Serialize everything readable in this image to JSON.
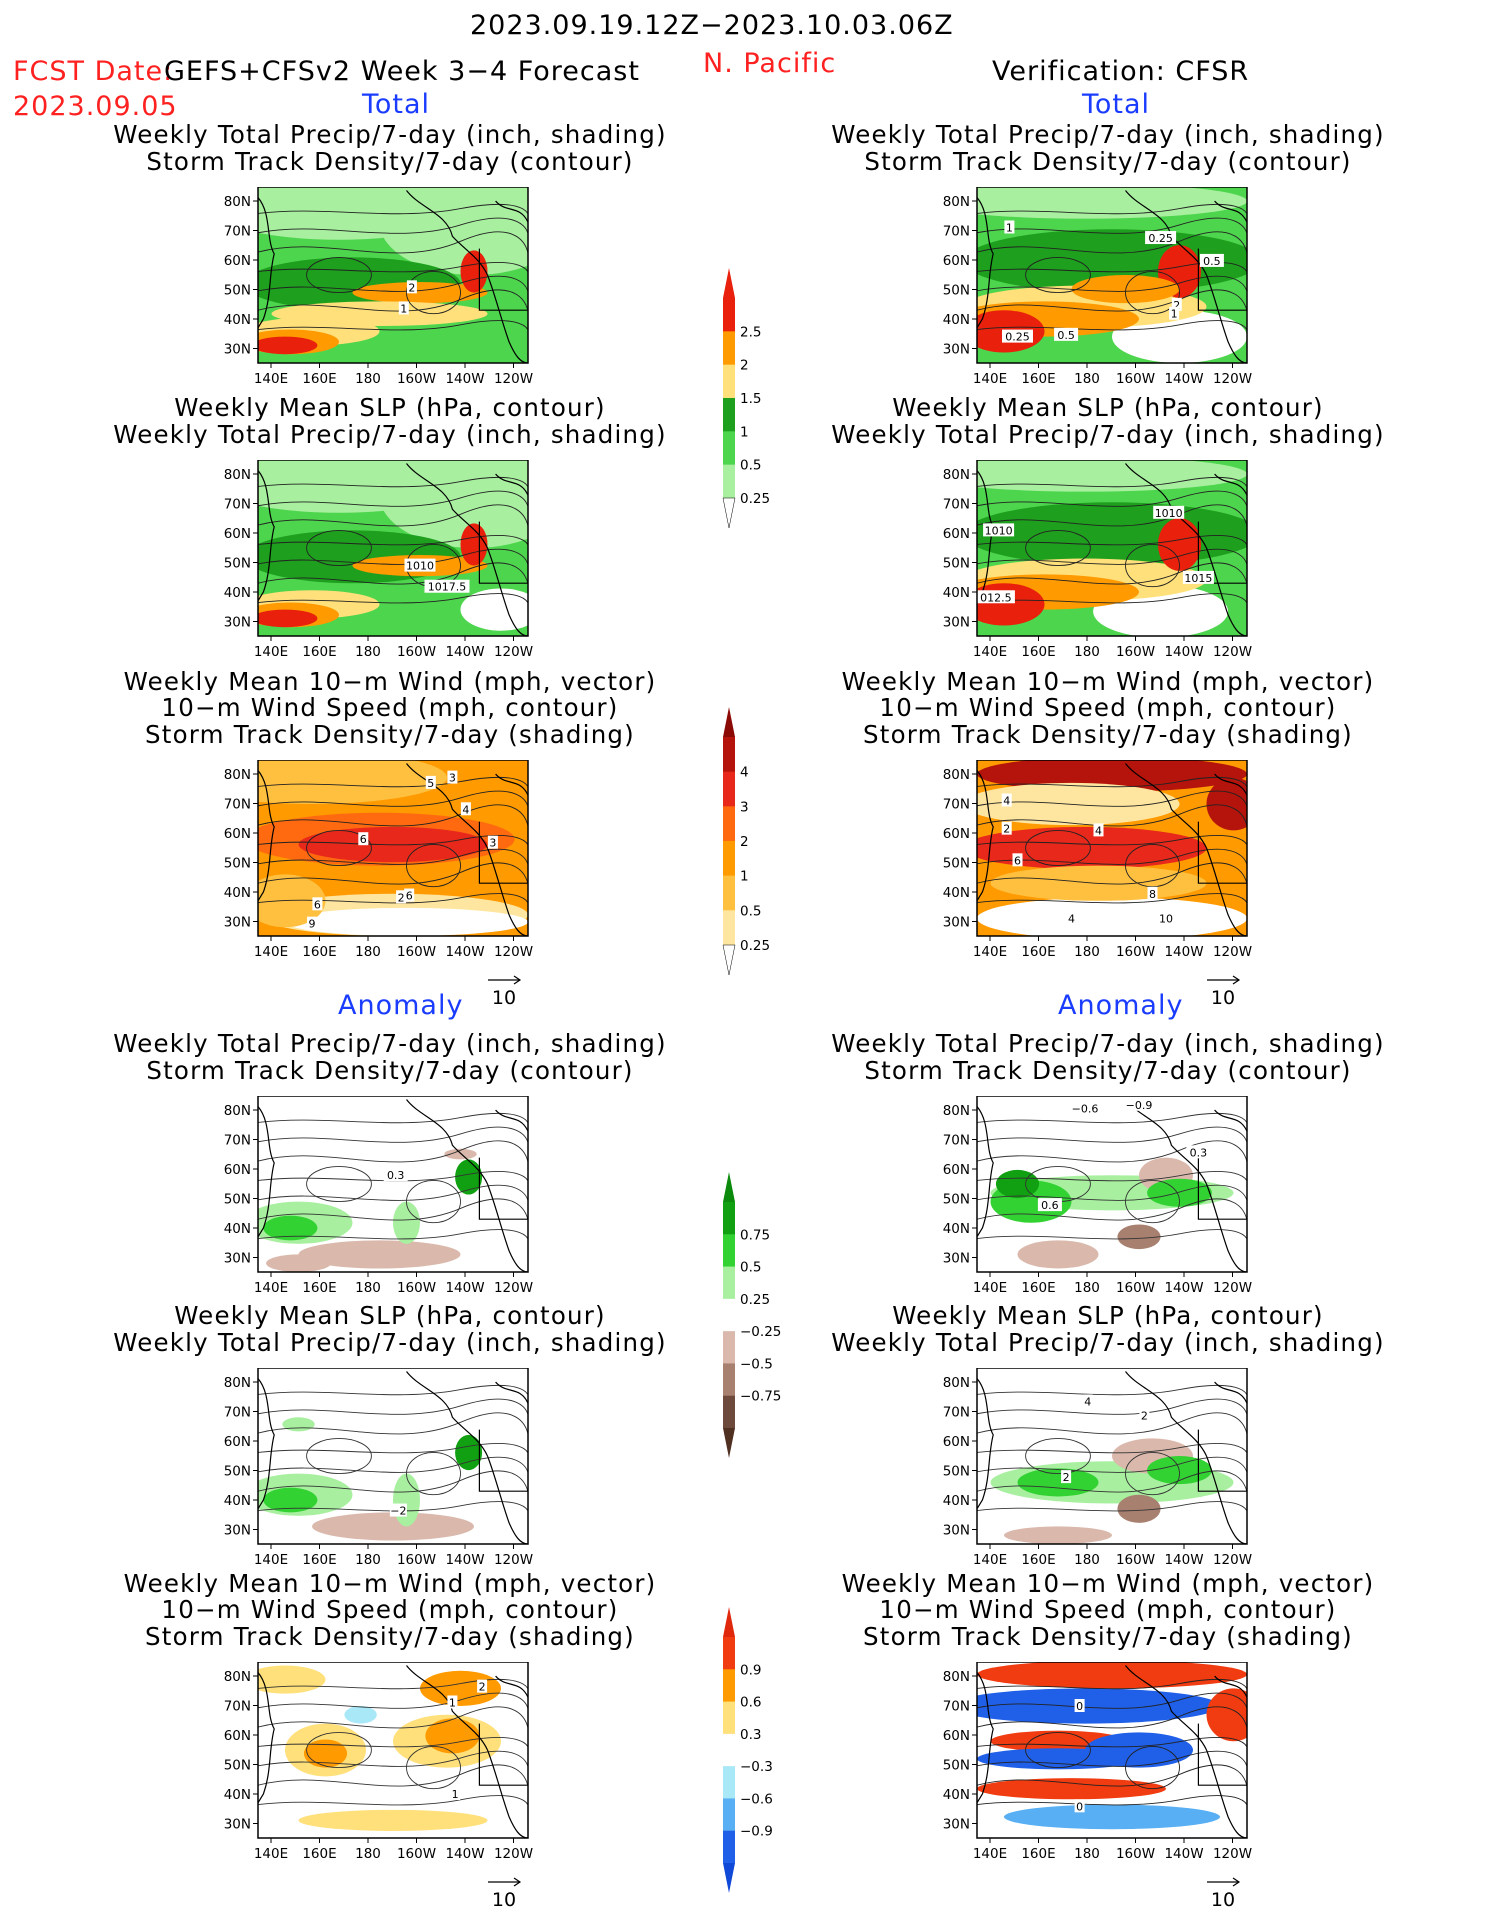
{
  "header": {
    "date_range": "2023.09.19.12Z−2023.10.03.06Z",
    "fcst_date_label": "FCST Date:",
    "fcst_date": "2023.09.05",
    "model": "GEFS+CFSv2 Week 3−4 Forecast",
    "region": "N. Pacific",
    "verification": "Verification: CFSR"
  },
  "sections": {
    "total": "Total",
    "anomaly": "Anomaly"
  },
  "axes": {
    "lat_ticks": [
      "80N",
      "70N",
      "60N",
      "50N",
      "40N",
      "30N"
    ],
    "lon_ticks": [
      "140E",
      "160E",
      "180",
      "160W",
      "140W",
      "120W"
    ]
  },
  "vector_ref": "10",
  "panels": [
    {
      "id": "fc-total-precip",
      "title": [
        "Weekly Total Precip/7-day (inch, shading)",
        "Storm Track Density/7-day (contour)"
      ],
      "labels": [
        "2",
        "1"
      ]
    },
    {
      "id": "vf-total-precip",
      "title": [
        "Weekly Total Precip/7-day (inch, shading)",
        "Storm Track Density/7-day (contour)"
      ],
      "labels": [
        "1",
        "0.25",
        "0.5",
        "2",
        "0.25",
        "0.5",
        "1"
      ]
    },
    {
      "id": "fc-total-slp",
      "title": [
        "Weekly Mean SLP (hPa, contour)",
        "Weekly Total Precip/7-day (inch, shading)"
      ],
      "labels": [
        "1010",
        "1017.5"
      ]
    },
    {
      "id": "vf-total-slp",
      "title": [
        "Weekly Mean SLP (hPa, contour)",
        "Weekly Total Precip/7-day (inch, shading)"
      ],
      "labels": [
        "1010",
        "1010",
        "1015",
        "012.5"
      ]
    },
    {
      "id": "fc-total-wind",
      "title": [
        "Weekly Mean 10−m Wind (mph, vector)",
        "10−m Wind Speed (mph, contour)",
        "Storm Track Density/7-day (shading)"
      ],
      "labels": [
        "5",
        "3",
        "4",
        "6",
        "3",
        "2",
        "6",
        "6",
        "9"
      ]
    },
    {
      "id": "vf-total-wind",
      "title": [
        "Weekly Mean 10−m Wind (mph, vector)",
        "10−m Wind Speed (mph, contour)",
        "Storm Track Density/7-day (shading)"
      ],
      "labels": [
        "4",
        "2",
        "4",
        "6",
        "8",
        "4",
        "10"
      ]
    },
    {
      "id": "fc-anom-precip",
      "title": [
        "Weekly Total Precip/7-day (inch, shading)",
        "Storm Track Density/7-day (contour)"
      ],
      "labels": [
        "0.3"
      ]
    },
    {
      "id": "vf-anom-precip",
      "title": [
        "Weekly Total Precip/7-day (inch, shading)",
        "Storm Track Density/7-day (contour)"
      ],
      "labels": [
        "−0.6",
        "−0.9",
        "0.3",
        "0.6"
      ]
    },
    {
      "id": "fc-anom-slp",
      "title": [
        "Weekly Mean SLP (hPa, contour)",
        "Weekly Total Precip/7-day (inch, shading)"
      ],
      "labels": [
        "−2"
      ]
    },
    {
      "id": "vf-anom-slp",
      "title": [
        "Weekly Mean SLP (hPa, contour)",
        "Weekly Total Precip/7-day (inch, shading)"
      ],
      "labels": [
        "4",
        "2",
        "2"
      ]
    },
    {
      "id": "fc-anom-wind",
      "title": [
        "Weekly Mean 10−m Wind (mph, vector)",
        "10−m Wind Speed (mph, contour)",
        "Storm Track Density/7-day (shading)"
      ],
      "labels": [
        "2",
        "1",
        "1"
      ]
    },
    {
      "id": "vf-anom-wind",
      "title": [
        "Weekly Mean 10−m Wind (mph, vector)",
        "10−m Wind Speed (mph, contour)",
        "Storm Track Density/7-day (shading)"
      ],
      "labels": [
        "0",
        "0"
      ]
    }
  ],
  "colorbars": [
    {
      "id": "cb-precip",
      "levels": [
        "2.5",
        "2",
        "1.5",
        "1",
        "0.5",
        "0.25"
      ],
      "colors": [
        "#e8200c",
        "#ff9a00",
        "#ffe07a",
        "#1ea01e",
        "#4ed54e",
        "#a8f0a0"
      ],
      "top_color": "#e8200c",
      "bottom_color": "#ffffff"
    },
    {
      "id": "cb-storm",
      "levels": [
        "4",
        "3",
        "2",
        "1",
        "0.5",
        "0.25"
      ],
      "colors": [
        "#b4140c",
        "#e8281a",
        "#ff6a10",
        "#ff9a00",
        "#ffc040",
        "#ffe6a0"
      ],
      "top_color": "#8c0a06",
      "bottom_color": "#ffffff"
    },
    {
      "id": "cb-precip-anom",
      "levels": [
        "0.75",
        "0.5",
        "0.25",
        "−0.25",
        "−0.5",
        "−0.75"
      ],
      "colors": [
        "#11a011",
        "#33d233",
        "#a8f0a0",
        "#ffffff",
        "#dab9ac",
        "#a88070",
        "#6e4a3c"
      ],
      "top_color": "#0c8a0c",
      "bottom_color": "#503020"
    },
    {
      "id": "cb-storm-anom",
      "levels": [
        "0.9",
        "0.6",
        "0.3",
        "−0.3",
        "−0.6",
        "−0.9"
      ],
      "colors": [
        "#f03c10",
        "#ff9a00",
        "#ffe07a",
        "#ffffff",
        "#a9e8f7",
        "#58aff3",
        "#2060e8"
      ],
      "top_color": "#e0280c",
      "bottom_color": "#1048d8"
    }
  ]
}
